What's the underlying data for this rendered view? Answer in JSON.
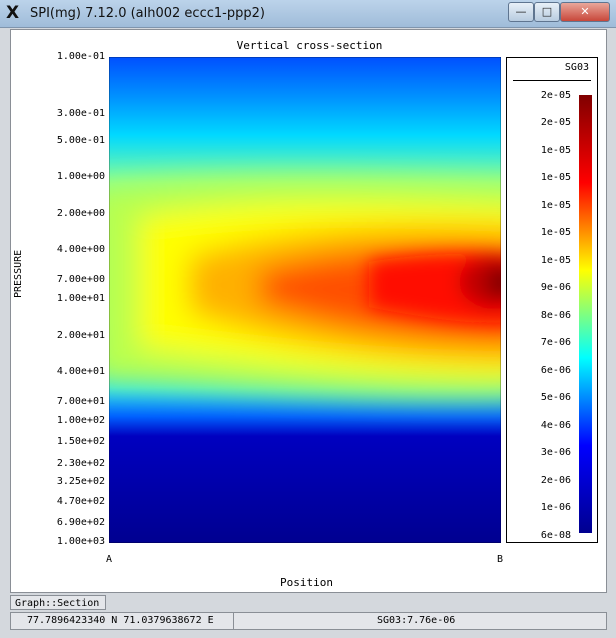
{
  "window": {
    "title": "SPI(mg) 7.12.0 (alh002 eccc1-ppp2)",
    "minimize": "—",
    "maximize": "□",
    "close": "✕"
  },
  "plot": {
    "title": "Vertical cross-section",
    "ylabel": "PRESSURE",
    "xlabel": "Position",
    "y_ticks": [
      "1.00e-01",
      "3.00e-01",
      "5.00e-01",
      "1.00e+00",
      "2.00e+00",
      "4.00e+00",
      "7.00e+00",
      "1.00e+01",
      "2.00e+01",
      "4.00e+01",
      "7.00e+01",
      "1.00e+02",
      "1.50e+02",
      "2.30e+02",
      "3.25e+02",
      "4.70e+02",
      "6.90e+02",
      "1.00e+03"
    ],
    "x_ticks": [
      "A",
      "B"
    ]
  },
  "legend": {
    "title": "SG03",
    "labels": [
      "2e-05",
      "2e-05",
      "1e-05",
      "1e-05",
      "1e-05",
      "1e-05",
      "1e-05",
      "9e-06",
      "8e-06",
      "7e-06",
      "6e-06",
      "5e-06",
      "4e-06",
      "3e-06",
      "2e-06",
      "1e-06",
      "6e-08"
    ]
  },
  "colors": {
    "colormap": [
      "#00008f",
      "#0000ff",
      "#00ffff",
      "#ffff00",
      "#ff0000",
      "#800000"
    ]
  },
  "tabs": {
    "graph_tab": "Graph::Section"
  },
  "status": {
    "coords": "77.7896423340 N 71.0379638672 E",
    "value": "SG03:7.76e-06"
  }
}
